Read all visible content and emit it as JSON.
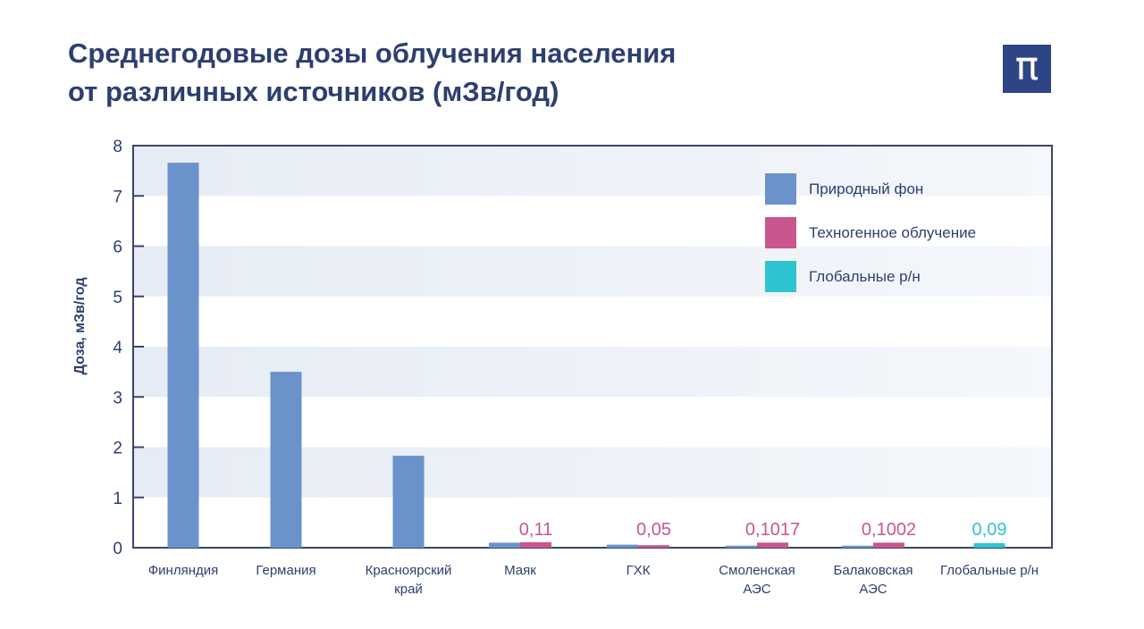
{
  "header": {
    "title_line1": "Среднегодовые дозы облучения населения",
    "title_line2": "от различных источников (мЗв/год)",
    "logo": "π"
  },
  "colors": {
    "natural": "#6a93cb",
    "technogenic": "#c9568f",
    "global": "#2ec4cf",
    "text": "#2c3f6f",
    "band": "#e8eef6"
  },
  "chart_data": {
    "type": "bar",
    "ylabel": "Доза, мЗв/год",
    "ylim": [
      0,
      8
    ],
    "yticks": [
      "0",
      "1",
      "2",
      "3",
      "4",
      "5",
      "6",
      "7",
      "8"
    ],
    "grid": "alternating horizontal bands",
    "legend_position": "top-right",
    "categories": [
      [
        "Финляндия"
      ],
      [
        "Германия"
      ],
      [
        "Красноярский",
        "край"
      ],
      [
        "Маяк"
      ],
      [
        "ГХК"
      ],
      [
        "Смоленская",
        "АЭС"
      ],
      [
        "Балаковская",
        "АЭС"
      ],
      [
        "Глобальные р/н"
      ]
    ],
    "series": [
      {
        "name": "Природный фон",
        "color": "#6a93cb",
        "values": [
          7.66,
          3.5,
          1.83,
          0.1,
          0.06,
          0.04,
          0.04,
          null
        ]
      },
      {
        "name": "Техногенное облучение",
        "color": "#c9568f",
        "values": [
          null,
          null,
          null,
          0.11,
          0.05,
          0.1017,
          0.1002,
          null
        ],
        "labels": [
          null,
          null,
          null,
          "0,11",
          "0,05",
          "0,1017",
          "0,1002",
          null
        ]
      },
      {
        "name": "Глобальные р/н",
        "color": "#2ec4cf",
        "values": [
          null,
          null,
          null,
          null,
          null,
          null,
          null,
          0.09
        ],
        "labels": [
          null,
          null,
          null,
          null,
          null,
          null,
          null,
          "0,09"
        ]
      }
    ]
  }
}
